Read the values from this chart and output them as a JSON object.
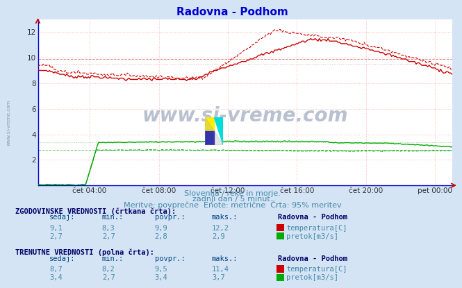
{
  "title": "Radovna - Podhom",
  "bg_color": "#d4e4f4",
  "plot_bg_color": "#ffffff",
  "title_color": "#0000cc",
  "axis_color": "#800000",
  "text_color": "#4488aa",
  "label_color": "#4488aa",
  "watermark": "www.si-vreme.com",
  "subtitle1": "Slovenija / reke in morje.",
  "subtitle2": "zadnji dan / 5 minut.",
  "subtitle3": "Meritve: povprečne  Enote: metrične  Črta: 95% meritev",
  "xticklabels": [
    "čet 04:00",
    "čet 08:00",
    "čet 12:00",
    "čet 16:00",
    "čet 20:00",
    "pet 00:00"
  ],
  "xtick_positions": [
    0.125,
    0.292,
    0.458,
    0.625,
    0.792,
    0.958
  ],
  "ylim": [
    0,
    13
  ],
  "yticks": [
    2,
    4,
    6,
    8,
    10,
    12
  ],
  "n_points": 288,
  "temp_color": "#cc0000",
  "flow_color": "#00aa00",
  "grid_color": "#ffaaaa",
  "hline_temp_hist_avg": 9.9,
  "hline_temp_curr_avg": 9.5,
  "hline_flow_hist_avg": 2.8,
  "hline_flow_curr_avg": 3.4,
  "legend_label1": "temperatura[C]",
  "legend_label2": "pretok[m3/s]",
  "station_name": "Radovna - Podhom",
  "hist_sedaj": [
    "9,1",
    "2,7"
  ],
  "hist_min": [
    "8,3",
    "2,7"
  ],
  "hist_povpr": [
    "9,9",
    "2,8"
  ],
  "hist_maks": [
    "12,2",
    "2,9"
  ],
  "curr_sedaj": [
    "8,7",
    "3,4"
  ],
  "curr_min": [
    "8,2",
    "2,7"
  ],
  "curr_povpr": [
    "9,5",
    "3,4"
  ],
  "curr_maks": [
    "11,4",
    "3,7"
  ],
  "spine_color": "#0000cc",
  "arrow_color": "#cc0000",
  "sidebar_text": "www.si-vreme.com"
}
